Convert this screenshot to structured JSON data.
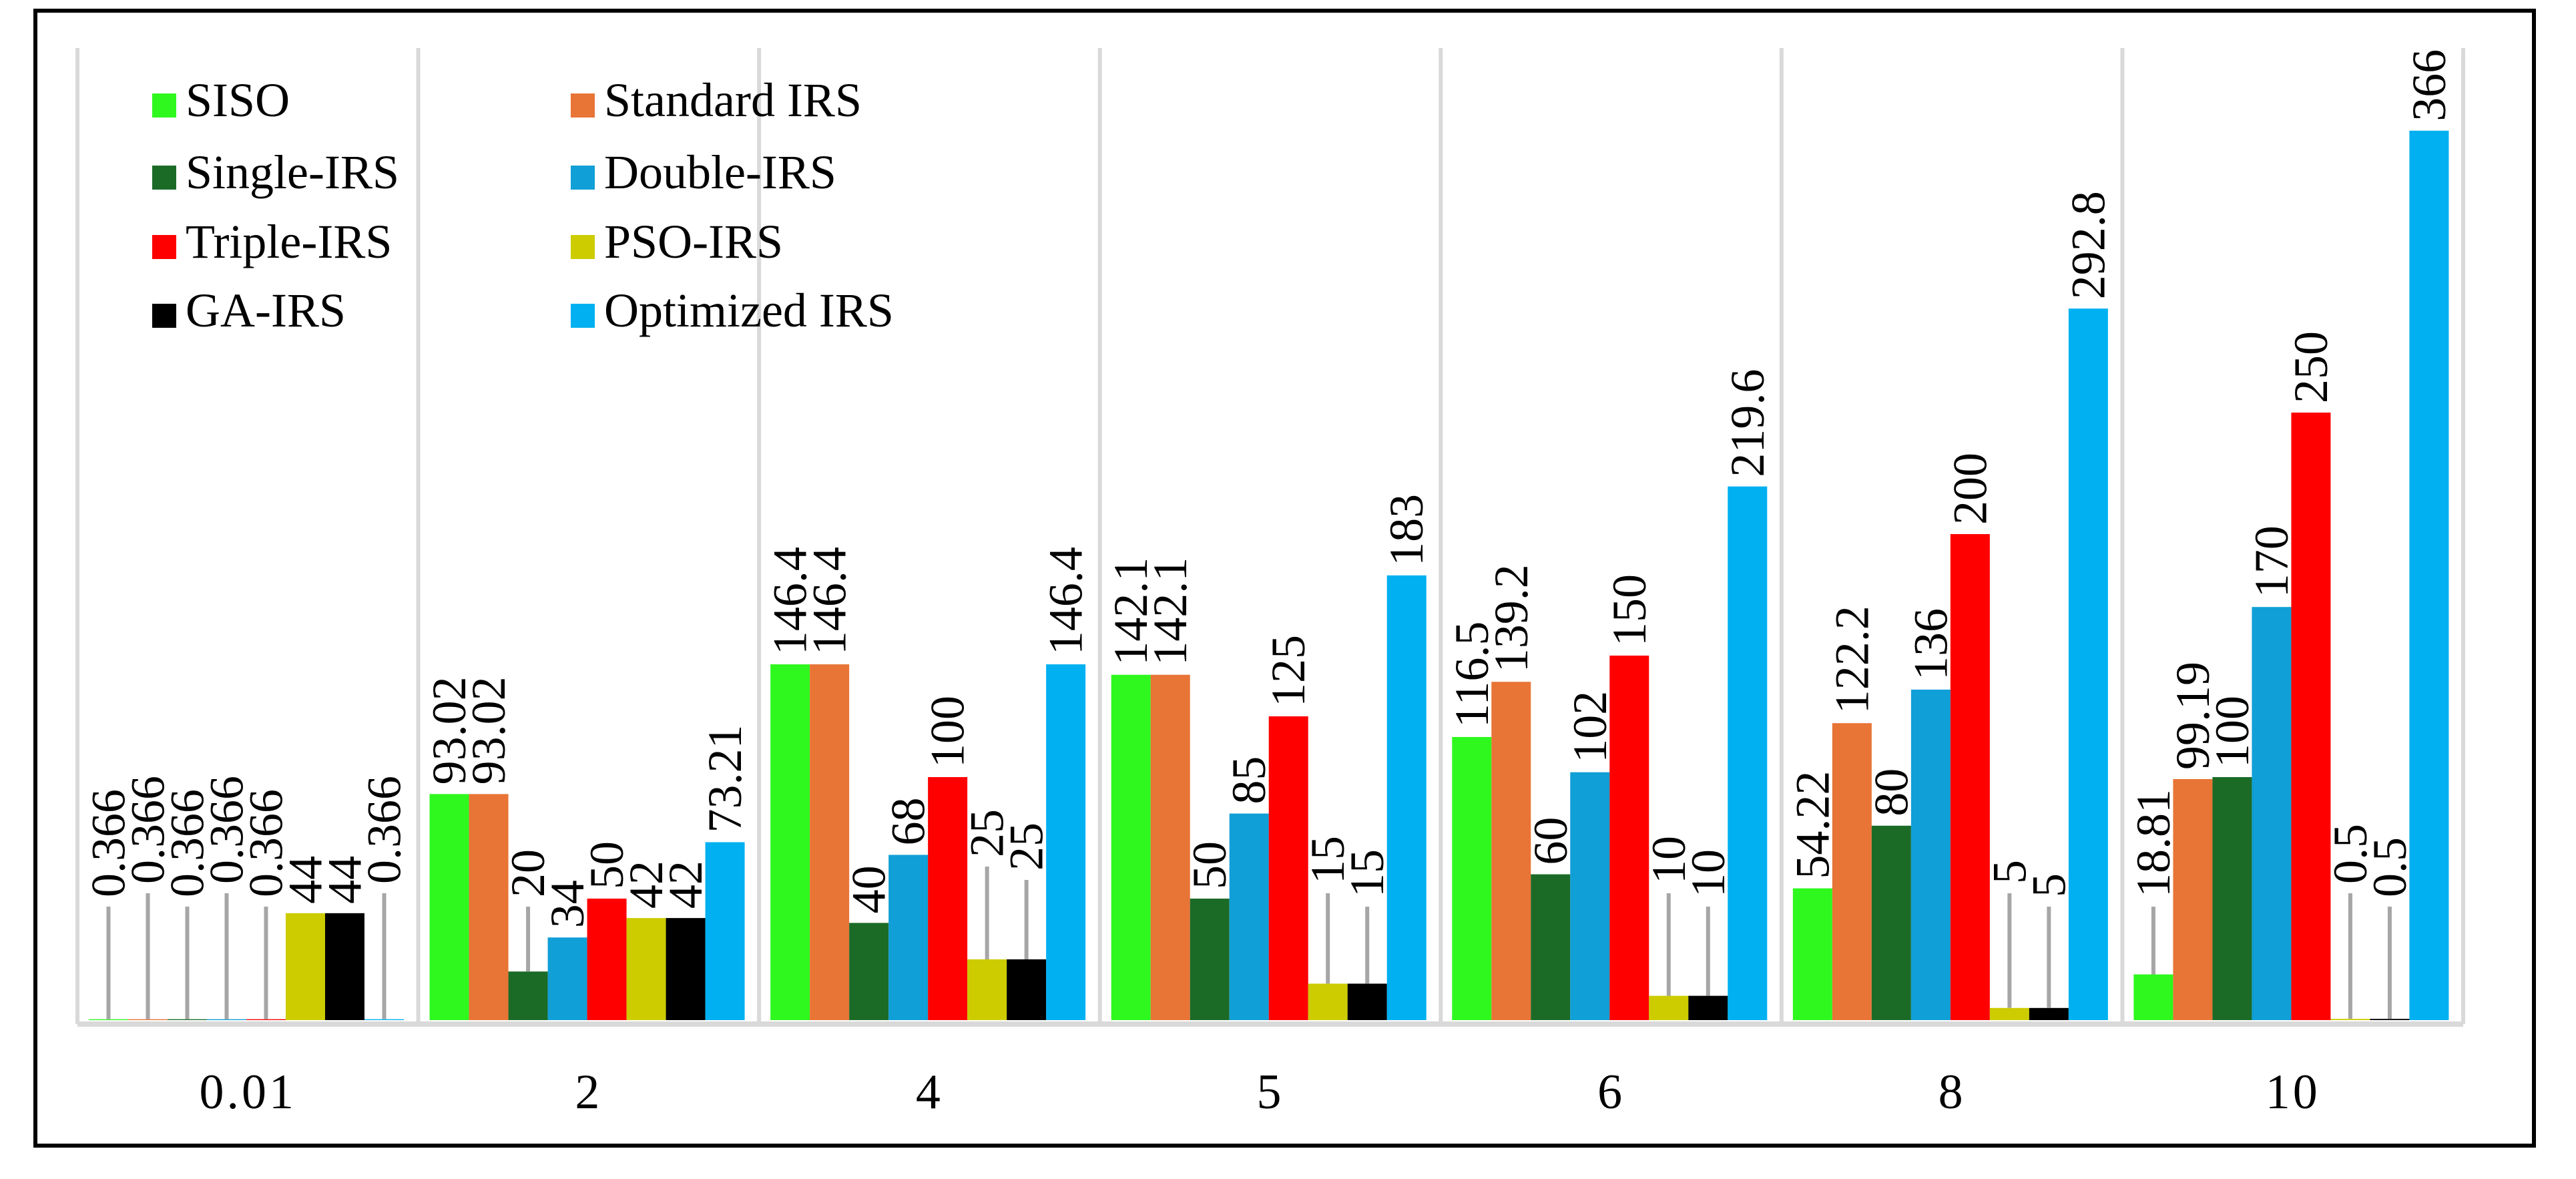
{
  "chart_data": {
    "type": "bar",
    "title": "",
    "xlabel": "",
    "ylabel": "",
    "ylim": [
      0,
      400
    ],
    "grid": false,
    "legend_position": "top-left",
    "categories": [
      "0.01",
      "2",
      "4",
      "5",
      "6",
      "8",
      "10"
    ],
    "series": [
      {
        "name": "SISO",
        "color": "#2EF81E",
        "values": [
          0.366,
          93.02,
          146.4,
          142.1,
          116.5,
          54.22,
          18.81
        ]
      },
      {
        "name": "Standard IRS",
        "color": "#E87436",
        "values": [
          0.366,
          93.02,
          146.4,
          142.1,
          139.2,
          122.2,
          99.19
        ]
      },
      {
        "name": "Single-IRS",
        "color": "#1B6B27",
        "values": [
          0.366,
          20,
          40,
          50,
          60,
          80,
          100
        ]
      },
      {
        "name": "Double-IRS",
        "color": "#109FD6",
        "values": [
          0.366,
          34,
          68,
          85,
          102,
          136,
          170
        ]
      },
      {
        "name": "Triple-IRS",
        "color": "#FF0000",
        "values": [
          0.366,
          50,
          100,
          125,
          150,
          200,
          250
        ]
      },
      {
        "name": "PSO-IRS",
        "color": "#CCCC00",
        "values": [
          44,
          42,
          25,
          15,
          10,
          5,
          0.5
        ]
      },
      {
        "name": "GA-IRS",
        "color": "#000000",
        "values": [
          44,
          42,
          25,
          15,
          10,
          5,
          0.5
        ]
      },
      {
        "name": "Optimized IRS",
        "color": "#00B0F0",
        "values": [
          0.366,
          73.21,
          146.4,
          183,
          219.6,
          292.8,
          366
        ]
      }
    ],
    "legend_order": [
      0,
      1,
      2,
      3,
      4,
      5,
      6,
      7
    ]
  }
}
